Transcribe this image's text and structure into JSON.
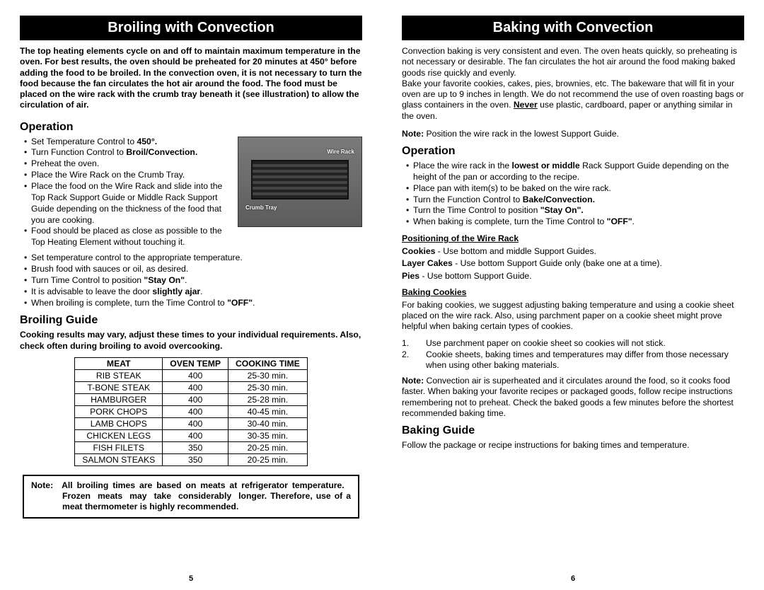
{
  "left": {
    "header": "Broiling with Convection",
    "intro": "The top heating elements cycle on and off to maintain maximum temperature in the oven. For best results, the oven should be preheated for 20 minutes at 450° before adding the food to be broiled. In the convection oven, it is not necessary to turn the food because the fan circulates the hot air around the food. The food must be placed on the wire rack with the crumb tray beneath it (see illustration) to allow the circulation of air.",
    "opTitle": "Operation",
    "op": [
      {
        "pre": "Set Temperature Control to ",
        "bold": "450°."
      },
      {
        "pre": "Turn Function Control to ",
        "bold": "Broil/Convection."
      },
      {
        "text": "Preheat the oven."
      },
      {
        "text": "Place the Wire Rack on the Crumb Tray."
      },
      {
        "text": "Place the food on the Wire Rack and slide into the Top Rack Support Guide or Middle Rack Support Guide depending on the thickness of the food that you are cooking."
      },
      {
        "text": "Food should be placed as close as possible to the Top Heating Element without touching it."
      },
      {
        "text": "Set temperature control to the appropriate temperature."
      },
      {
        "text": "Brush food with sauces or oil, as desired."
      },
      {
        "pre": "Turn Time Control to position ",
        "bold": "\"Stay On\"",
        "post": "."
      },
      {
        "pre": "It is advisable to leave the door ",
        "bold": "slightly ajar",
        "post": "."
      },
      {
        "pre": "When broiling is complete, turn the Time Control to ",
        "bold": "\"OFF\"",
        "post": "."
      }
    ],
    "imgWire": "Wire Rack",
    "imgCrumb": "Crumb Tray",
    "guideTitle": "Broiling Guide",
    "guideSub": "Cooking results may vary, adjust these times to your individual requirements. Also, check often during broiling to avoid overcooking.",
    "th": [
      "MEAT",
      "OVEN TEMP",
      "COOKING TIME"
    ],
    "rows": [
      [
        "RIB STEAK",
        "400",
        "25-30 min."
      ],
      [
        "T-BONE STEAK",
        "400",
        "25-30 min."
      ],
      [
        "HAMBURGER",
        "400",
        "25-28 min."
      ],
      [
        "PORK CHOPS",
        "400",
        "40-45 min."
      ],
      [
        "LAMB CHOPS",
        "400",
        "30-40 min."
      ],
      [
        "CHICKEN LEGS",
        "400",
        "30-35 min."
      ],
      [
        "FISH FILETS",
        "350",
        "20-25 min."
      ],
      [
        "SALMON STEAKS",
        "350",
        "20-25 min."
      ]
    ],
    "noteLabel": "Note:",
    "noteBody": "All broiling times are based on meats at refrigerator temperature.   Frozen  meats  may  take  considerably  longer. Therefore, use of a meat thermometer is highly recommended.",
    "pageNum": "5"
  },
  "right": {
    "header": "Baking with Convection",
    "intro1": "Convection baking is very consistent and even. The oven heats quickly, so preheating is not necessary or desirable. The fan circulates the hot air around the food making baked goods rise quickly and evenly.",
    "intro2_pre": "Bake your favorite cookies, cakes, pies, brownies, etc. The bakeware that will fit in your oven are up to 9 inches in length.  We do not recommend the use of oven roasting bags or glass containers in the oven.  ",
    "intro2_never": "Never",
    "intro2_post": " use plastic, cardboard, paper or anything similar in the oven.",
    "noteLabel": "Note:",
    "noteLine": "  Position the wire rack in the lowest Support Guide.",
    "opTitle": "Operation",
    "op": [
      {
        "pre": "Place the wire rack in the ",
        "bold": "lowest or middle",
        "post": " Rack Support Guide depending on the height of the pan or according to the recipe."
      },
      {
        "text": "Place pan with item(s) to be baked on the wire rack."
      },
      {
        "pre": "Turn the Function Control to ",
        "bold": "Bake/Convection."
      },
      {
        "pre": "Turn the Time Control to position ",
        "bold": "\"Stay On\"."
      },
      {
        "pre": "When  baking is complete, turn the Time Control to ",
        "bold": "\"OFF\"",
        "post": "."
      }
    ],
    "posTitle": "Positioning of the Wire Rack",
    "posCookies_l": "Cookies",
    "posCookies_t": " - Use bottom and middle Support Guides.",
    "posLayer_l": "Layer Cakes",
    "posLayer_t": " - Use bottom Support Guide only (bake one at a time).",
    "posPies_l": "Pies",
    "posPies_t": " - Use bottom Support Guide.",
    "bcTitle": "Baking Cookies",
    "bcPara": "For baking cookies, we suggest adjusting baking temperature and using a cookie sheet placed on the wire rack.  Also, using parchment paper on a cookie sheet might prove helpful when baking certain types of cookies.",
    "bcList": [
      "Use parchment paper on cookie sheet so cookies will not stick.",
      "Cookie sheets, baking times and temperatures may differ from those necessary when using other baking materials."
    ],
    "bcNoteLabel": "Note:",
    "bcNote": " Convection air is superheated and it circulates around the food, so it cooks food faster. When baking your favorite recipes or packaged goods, follow recipe instructions remembering not to preheat. Check the baked goods a few minutes before the shortest recommended baking time.",
    "bgTitle": "Baking Guide",
    "bgText": "Follow the package or recipe instructions for baking times and temperature.",
    "pageNum": "6"
  }
}
